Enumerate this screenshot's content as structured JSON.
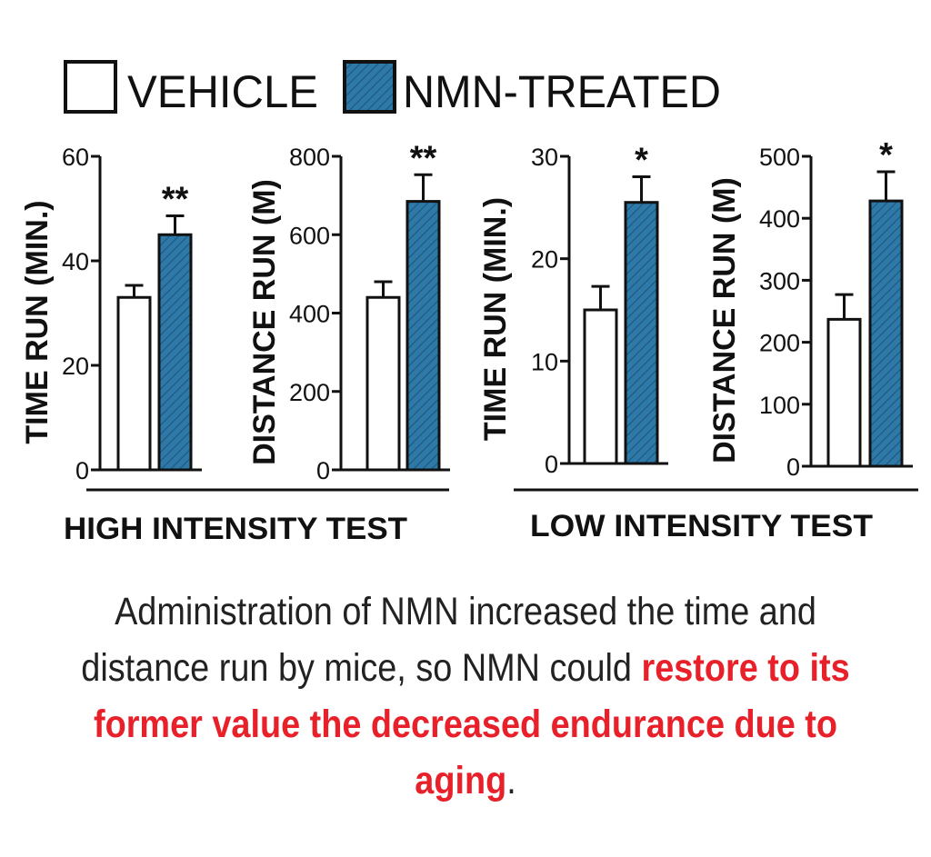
{
  "legend": {
    "items": [
      {
        "label": "VEHICLE",
        "fill": "#ffffff",
        "pattern": "none"
      },
      {
        "label": "NMN-TREATED",
        "fill": "#2e79a8",
        "pattern": "diagonal-hatch"
      }
    ]
  },
  "colors": {
    "vehicle": "#ffffff",
    "nmn": "#2e79a8",
    "hatch": "#1f5a80",
    "axis": "#111111",
    "highlight": "#e8202a"
  },
  "chart_data": [
    {
      "type": "bar",
      "group": "HIGH INTENSITY TEST",
      "ylabel": "TIME RUN (MIN.)",
      "ylim": [
        0,
        60
      ],
      "yticks": [
        0,
        20,
        40,
        60
      ],
      "categories": [
        "VEHICLE",
        "NMN-TREATED"
      ],
      "values": [
        33,
        45
      ],
      "errors": [
        2.3,
        3.6
      ],
      "significance": "**"
    },
    {
      "type": "bar",
      "group": "HIGH INTENSITY TEST",
      "ylabel": "DISTANCE RUN (M)",
      "ylim": [
        0,
        800
      ],
      "yticks": [
        0,
        200,
        400,
        600,
        800
      ],
      "categories": [
        "VEHICLE",
        "NMN-TREATED"
      ],
      "values": [
        440,
        685
      ],
      "errors": [
        40,
        68
      ],
      "significance": "**"
    },
    {
      "type": "bar",
      "group": "LOW INTENSITY TEST",
      "ylabel": "TIME RUN (MIN.)",
      "ylim": [
        0,
        30
      ],
      "yticks": [
        0,
        10,
        20,
        30
      ],
      "categories": [
        "VEHICLE",
        "NMN-TREATED"
      ],
      "values": [
        15,
        25.5
      ],
      "errors": [
        2.3,
        2.5
      ],
      "significance": "*"
    },
    {
      "type": "bar",
      "group": "LOW INTENSITY TEST",
      "ylabel": "DISTANCE RUN (M)",
      "ylim": [
        0,
        500
      ],
      "yticks": [
        0,
        100,
        200,
        300,
        400,
        500
      ],
      "categories": [
        "VEHICLE",
        "NMN-TREATED"
      ],
      "values": [
        237,
        428
      ],
      "errors": [
        40,
        47
      ],
      "significance": "*"
    }
  ],
  "group_labels": [
    "HIGH INTENSITY TEST",
    "LOW INTENSITY TEST"
  ],
  "caption": {
    "plain": "Administration of NMN increased the time and distance run by mice, so NMN could ",
    "highlight": "restore to its former value the decreased endurance due to aging",
    "end": "."
  }
}
